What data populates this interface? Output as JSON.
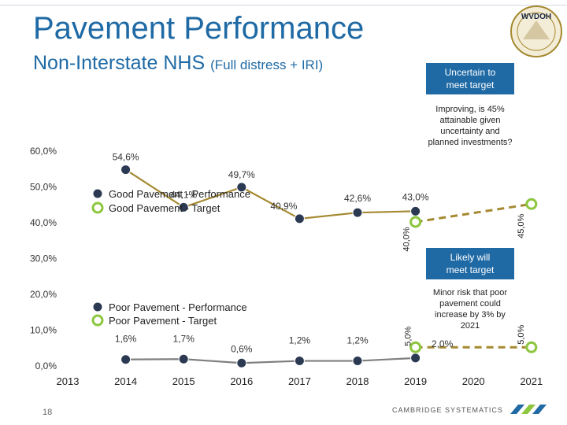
{
  "header": {
    "title": "Pavement Performance",
    "subtitle_main": "Non-Interstate NHS",
    "subtitle_note": "(Full distress + IRI)",
    "logo_text": "WVDOH"
  },
  "footer": {
    "page_number": "18",
    "company": "CAMBRIDGE SYSTEMATICS"
  },
  "colors": {
    "good_line": "#a58a32",
    "poor_line": "#7f7f7f",
    "marker_fill": "#2b3a52",
    "target_ring": "#8dc63f",
    "target_line": "#a58a32",
    "box_fill": "#1f6aa5",
    "title_blue": "#1f6aa5"
  },
  "chart_data": {
    "type": "line",
    "x": [
      "2013",
      "2014",
      "2015",
      "2016",
      "2017",
      "2018",
      "2019",
      "2020",
      "2021"
    ],
    "ylim": [
      0,
      60
    ],
    "yticks": [
      "0,0%",
      "10,0%",
      "20,0%",
      "30,0%",
      "40,0%",
      "50,0%",
      "60,0%"
    ],
    "series": [
      {
        "name": "Good Pavement - Performance",
        "points": [
          {
            "x": "2014",
            "y": 54.6,
            "label": "54,6%"
          },
          {
            "x": "2015",
            "y": 44.1,
            "label": "44,1%"
          },
          {
            "x": "2016",
            "y": 49.7,
            "label": "49,7%"
          },
          {
            "x": "2017",
            "y": 40.9,
            "label": "40,9%"
          },
          {
            "x": "2018",
            "y": 42.6,
            "label": "42,6%"
          },
          {
            "x": "2019",
            "y": 43.0,
            "label": "43,0%"
          }
        ]
      },
      {
        "name": "Good Pavement - Target",
        "points": [
          {
            "x": "2019",
            "y": 40.0,
            "label": "40,0%"
          },
          {
            "x": "2021",
            "y": 45.0,
            "label": "45,0%"
          }
        ]
      },
      {
        "name": "Poor Pavement - Performance",
        "points": [
          {
            "x": "2014",
            "y": 1.6,
            "label": "1,6%"
          },
          {
            "x": "2015",
            "y": 1.7,
            "label": "1,7%"
          },
          {
            "x": "2016",
            "y": 0.6,
            "label": "0,6%"
          },
          {
            "x": "2017",
            "y": 1.2,
            "label": "1,2%"
          },
          {
            "x": "2018",
            "y": 1.2,
            "label": "1,2%"
          },
          {
            "x": "2019",
            "y": 2.0,
            "label": "2,0%"
          }
        ]
      },
      {
        "name": "Poor Pavement - Target",
        "points": [
          {
            "x": "2019",
            "y": 5.0,
            "label": "5,0%"
          },
          {
            "x": "2021",
            "y": 5.0,
            "label": "5,0%"
          }
        ]
      }
    ],
    "annotations": {
      "uncertain_header": "Uncertain to meet target",
      "uncertain_body": "Improving, is 45% attainable given uncertainty and planned investments?",
      "likely_header": "Likely will meet target",
      "likely_body": "Minor risk that poor pavement could increase by 3% by 2021"
    }
  }
}
